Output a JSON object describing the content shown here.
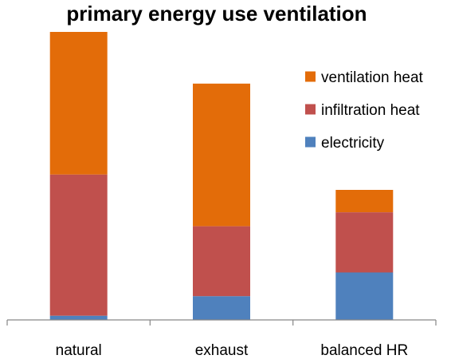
{
  "chart_data": {
    "type": "bar",
    "stacked": true,
    "title": "primary energy use ventilation",
    "xlabel": "",
    "ylabel": "",
    "categories": [
      "natural",
      "exhaust",
      "balanced HR"
    ],
    "series": [
      {
        "name": "electricity",
        "values": [
          1.5,
          8.5,
          17
        ],
        "color": "#4f81bd"
      },
      {
        "name": "infiltration heat",
        "values": [
          50.5,
          25,
          21.5
        ],
        "color": "#c0504d"
      },
      {
        "name": "ventilation heat",
        "values": [
          51,
          51,
          8
        ],
        "color": "#e36c09"
      }
    ],
    "legend_order": [
      "ventilation heat",
      "infiltration heat",
      "electricity"
    ],
    "ylim": [
      0,
      103
    ],
    "grid": false,
    "y_axis_visible": false,
    "legend_position": "top-right"
  }
}
